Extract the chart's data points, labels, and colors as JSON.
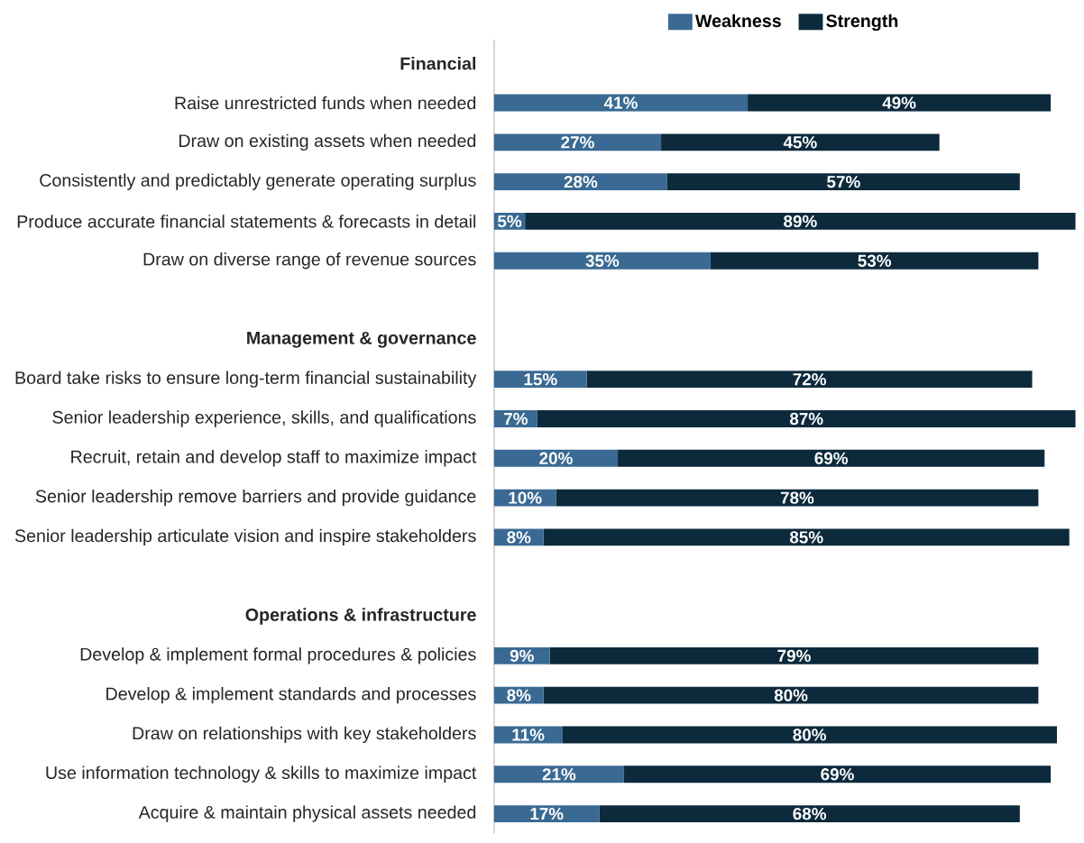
{
  "chart_data": {
    "type": "bar",
    "orientation": "horizontal",
    "stacked": true,
    "legend": "top",
    "categories": [
      "**Financial**",
      "Raise unrestricted funds when needed",
      "Draw on existing assets when needed",
      "Consistently and predictably generate operating surplus",
      "Produce accurate financial statements & forecasts in detail",
      "Draw on diverse range of revenue sources",
      null,
      "**Management  & governance**",
      "Board take risks to ensure long-term financial sustainability",
      "Senior leadership experience, skills, and qualifications",
      "Recruit, retain and develop staff to maximize impact",
      "Senior leadership remove barriers and provide guidance",
      "Senior leadership articulate vision and inspire stakeholders",
      null,
      "**Operations & infrastructure**",
      "Develop & implement formal procedures & policies",
      "Develop & implement standards and processes",
      "Draw on relationships with key stakeholders",
      "Use information technology & skills to maximize impact",
      "Acquire & maintain physical assets needed"
    ],
    "series": [
      {
        "name": "Weakness",
        "color": "#3a6a93",
        "values": [
          null,
          41,
          27,
          28,
          5,
          35,
          null,
          null,
          15,
          7,
          20,
          10,
          8,
          null,
          null,
          9,
          8,
          11,
          21,
          17
        ],
        "value_labels": [
          null,
          "41%",
          "27%",
          "28%",
          "5%",
          "35%",
          null,
          null,
          "15%",
          "7%",
          "20%",
          "10%",
          "8%",
          null,
          null,
          "9%",
          "8%",
          "11%",
          "21%",
          "17%"
        ]
      },
      {
        "name": "Strength",
        "color": "#0d2a3c",
        "values": [
          null,
          49,
          45,
          57,
          89,
          53,
          null,
          null,
          72,
          87,
          69,
          78,
          85,
          null,
          null,
          79,
          80,
          80,
          69,
          68
        ],
        "value_labels": [
          null,
          "49%",
          "45%",
          "57%",
          "89%",
          "53%",
          null,
          null,
          "72%",
          "87%",
          "69%",
          "78%",
          "85%",
          null,
          null,
          "79%",
          "80%",
          "80%",
          "69%",
          "68%"
        ]
      }
    ]
  }
}
